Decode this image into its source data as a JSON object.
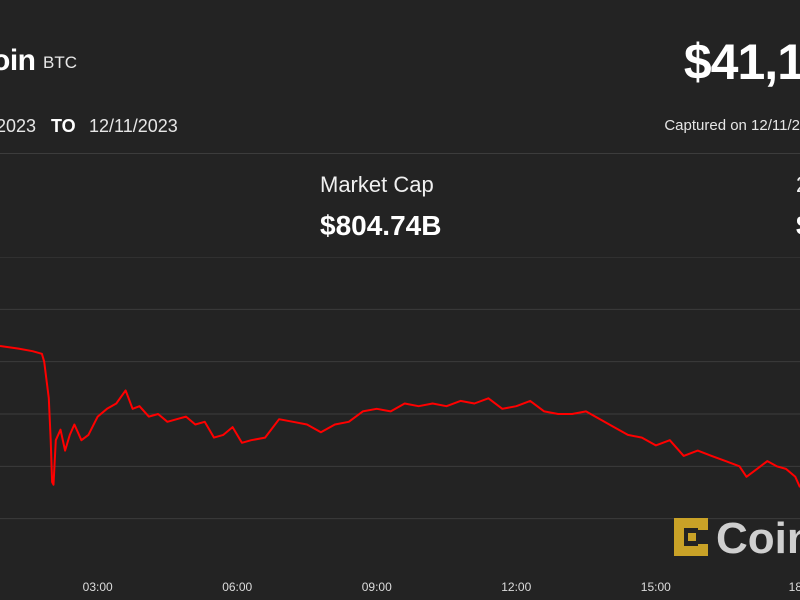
{
  "header": {
    "title": "oin",
    "symbol": "BTC",
    "price": "$41,1",
    "date_from": "2023",
    "date_to_label": "TO",
    "date_to": "12/11/2023",
    "captured": "Captured on 12/11/2"
  },
  "stats": {
    "market_cap_label": "Market Cap",
    "market_cap_value": "$804.74B",
    "stat3_label": "2",
    "stat3_value": "$"
  },
  "watermark": {
    "text": "Coin"
  },
  "colors": {
    "background": "#232323",
    "line": "#ff0000",
    "grid": "#3c3c3c",
    "tick": "#dcdcdc",
    "logo_gold": "#c9a227"
  },
  "chart_data": {
    "type": "line",
    "x_unit": "hours",
    "xlim": [
      0.9,
      18.1
    ],
    "ylim": [
      0,
      6
    ],
    "x_ticks": [
      3,
      6,
      9,
      12,
      15,
      18
    ],
    "x_tick_labels": [
      "03:00",
      "06:00",
      "09:00",
      "12:00",
      "15:00",
      "18"
    ],
    "grid": "horizontal",
    "series": [
      {
        "x": [
          0.9,
          1.3,
          1.6,
          1.8,
          1.85,
          1.95,
          1.99,
          2.02,
          2.05,
          2.1,
          2.2,
          2.3,
          2.4,
          2.5,
          2.65,
          2.8,
          3.0,
          3.2,
          3.4,
          3.6,
          3.75,
          3.9,
          4.1,
          4.3,
          4.5,
          4.7,
          4.9,
          5.1,
          5.3,
          5.5,
          5.7,
          5.9,
          6.1,
          6.3,
          6.6,
          6.9,
          7.2,
          7.5,
          7.8,
          8.1,
          8.4,
          8.7,
          9.0,
          9.3,
          9.6,
          9.9,
          10.2,
          10.5,
          10.8,
          11.1,
          11.4,
          11.7,
          12.0,
          12.3,
          12.6,
          12.9,
          13.2,
          13.5,
          13.8,
          14.1,
          14.4,
          14.7,
          15.0,
          15.3,
          15.6,
          15.9,
          16.2,
          16.5,
          16.8,
          16.95,
          17.1,
          17.25,
          17.4,
          17.6,
          17.8,
          18.0,
          18.1
        ],
        "y": [
          4.3,
          4.25,
          4.2,
          4.15,
          4.0,
          3.3,
          2.5,
          1.7,
          1.65,
          2.5,
          2.7,
          2.3,
          2.6,
          2.8,
          2.5,
          2.6,
          2.95,
          3.1,
          3.2,
          3.45,
          3.1,
          3.15,
          2.95,
          3.0,
          2.85,
          2.9,
          2.95,
          2.8,
          2.85,
          2.55,
          2.6,
          2.75,
          2.45,
          2.5,
          2.55,
          2.9,
          2.85,
          2.8,
          2.65,
          2.8,
          2.85,
          3.05,
          3.1,
          3.05,
          3.2,
          3.15,
          3.2,
          3.15,
          3.25,
          3.2,
          3.3,
          3.1,
          3.15,
          3.25,
          3.05,
          3.0,
          3.0,
          3.05,
          2.9,
          2.75,
          2.6,
          2.55,
          2.4,
          2.5,
          2.2,
          2.3,
          2.2,
          2.1,
          2.0,
          1.8,
          1.9,
          2.0,
          2.1,
          2.0,
          1.95,
          1.8,
          1.6
        ]
      }
    ]
  }
}
